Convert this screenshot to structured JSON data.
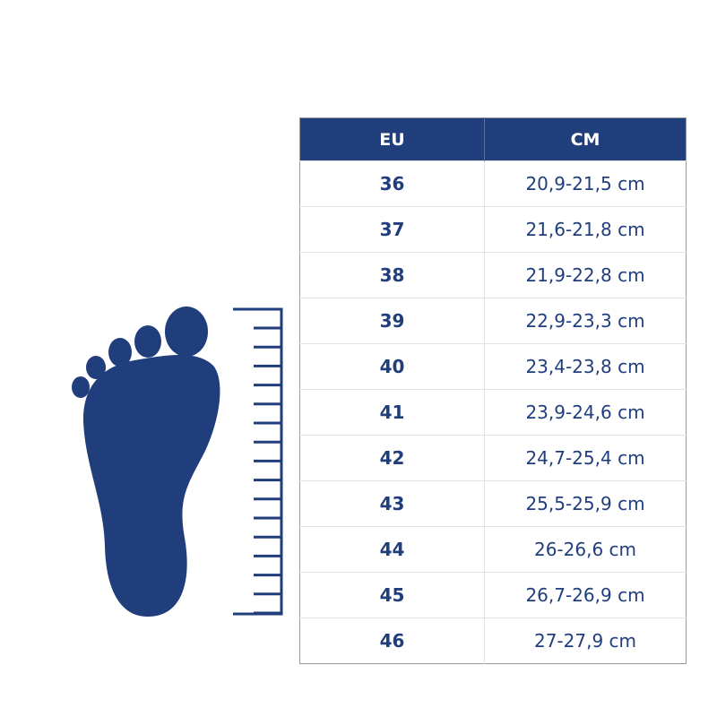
{
  "colors": {
    "brand": "#203e7c",
    "background": "#ffffff"
  },
  "table": {
    "headers": [
      "EU",
      "CM"
    ],
    "rows": [
      {
        "eu": "36",
        "cm": "20,9-21,5 cm"
      },
      {
        "eu": "37",
        "cm": "21,6-21,8 cm"
      },
      {
        "eu": "38",
        "cm": "21,9-22,8 cm"
      },
      {
        "eu": "39",
        "cm": "22,9-23,3 cm"
      },
      {
        "eu": "40",
        "cm": "23,4-23,8 cm"
      },
      {
        "eu": "41",
        "cm": "23,9-24,6 cm"
      },
      {
        "eu": "42",
        "cm": "24,7-25,4 cm"
      },
      {
        "eu": "43",
        "cm": "25,5-25,9 cm"
      },
      {
        "eu": "44",
        "cm": "26-26,6 cm"
      },
      {
        "eu": "45",
        "cm": "26,7-26,9 cm"
      },
      {
        "eu": "46",
        "cm": "27-27,9 cm"
      }
    ]
  },
  "illustration": {
    "icons": [
      "foot-icon",
      "ruler-icon"
    ]
  }
}
